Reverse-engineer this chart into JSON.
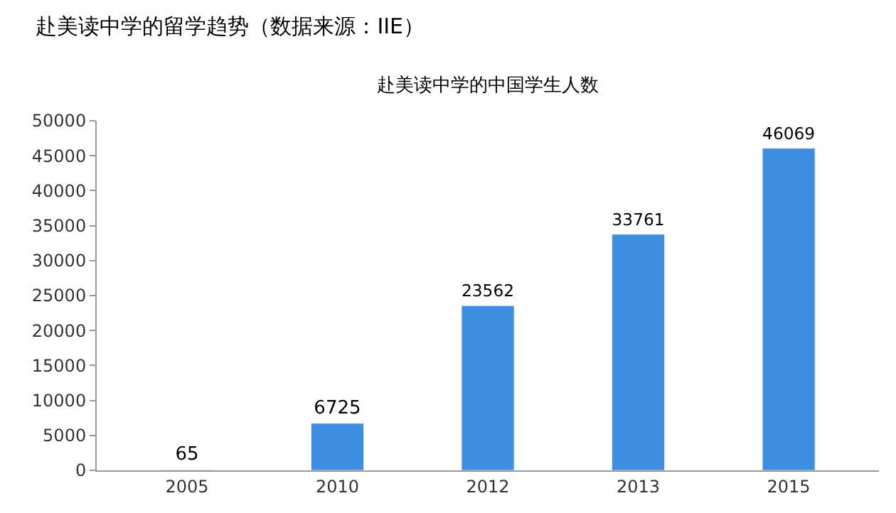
{
  "chart_data": {
    "type": "bar",
    "title": "赴美读中学的留学趋势（数据来源：IIE）",
    "subtitle": "赴美读中学的中国学生人数",
    "categories": [
      "2005",
      "2010",
      "2012",
      "2013",
      "2015"
    ],
    "values": [
      65,
      6725,
      23562,
      33761,
      46069
    ],
    "color": "#3d8ee0",
    "ylim": [
      0,
      50000
    ],
    "yticks": [
      0,
      5000,
      10000,
      15000,
      20000,
      25000,
      30000,
      35000,
      40000,
      45000,
      50000
    ],
    "legend": false,
    "data_labels": true
  }
}
